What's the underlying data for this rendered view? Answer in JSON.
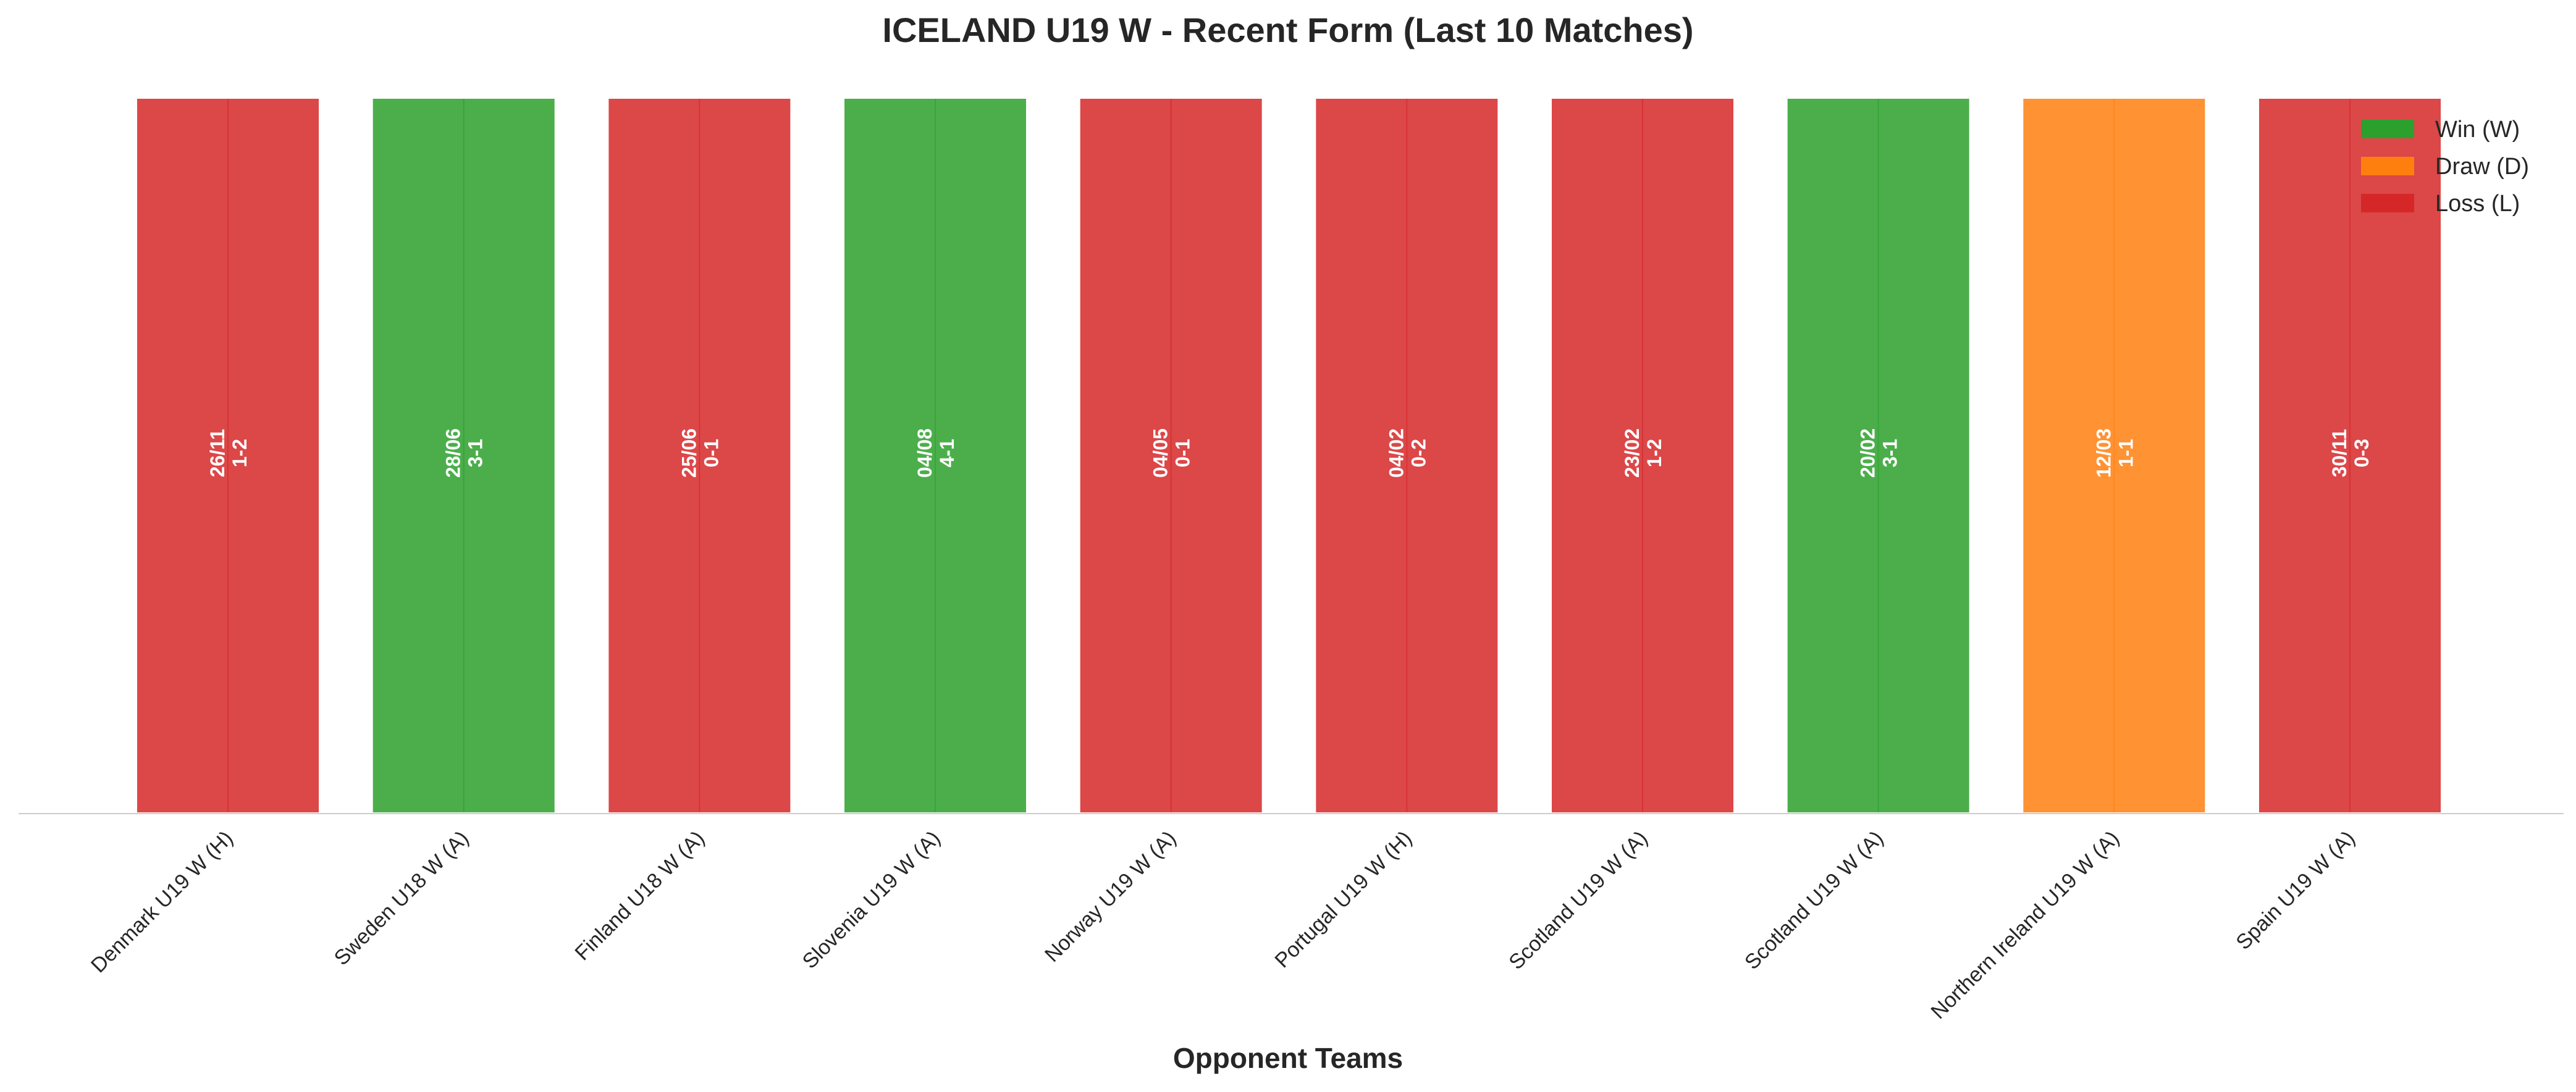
{
  "chart_data": {
    "type": "bar",
    "title": "ICELAND U19 W - Recent Form (Last 10 Matches)",
    "xlabel": "Opponent Teams",
    "ylabel": "",
    "ylim": [
      0,
      1
    ],
    "grid": false,
    "legend_position": "top-right",
    "legend": [
      {
        "key": "W",
        "label": "Win (W)",
        "color": "#2ca02c"
      },
      {
        "key": "D",
        "label": "Draw (D)",
        "color": "#ff7f0e"
      },
      {
        "key": "L",
        "label": "Loss (L)",
        "color": "#d62728"
      }
    ],
    "categories": [
      "Denmark U19 W (H)",
      "Sweden U18 W (A)",
      "Finland U18 W (A)",
      "Slovenia U19 W (A)",
      "Norway U19 W (A)",
      "Portugal U19 W (H)",
      "Scotland U19 W (A)",
      "Scotland U19 W (A)",
      "Northern Ireland U19 W (A)",
      "Spain U19 W (A)"
    ],
    "values": [
      1,
      1,
      1,
      1,
      1,
      1,
      1,
      1,
      1,
      1
    ],
    "results": [
      "L",
      "W",
      "L",
      "W",
      "L",
      "L",
      "L",
      "W",
      "D",
      "L"
    ],
    "dates": [
      "26/11",
      "28/06",
      "25/06",
      "04/08",
      "04/05",
      "04/02",
      "23/02",
      "20/02",
      "12/03",
      "30/11"
    ],
    "scores": [
      "1-2",
      "3-1",
      "0-1",
      "4-1",
      "0-1",
      "0-2",
      "1-2",
      "3-1",
      "1-1",
      "0-3"
    ]
  }
}
